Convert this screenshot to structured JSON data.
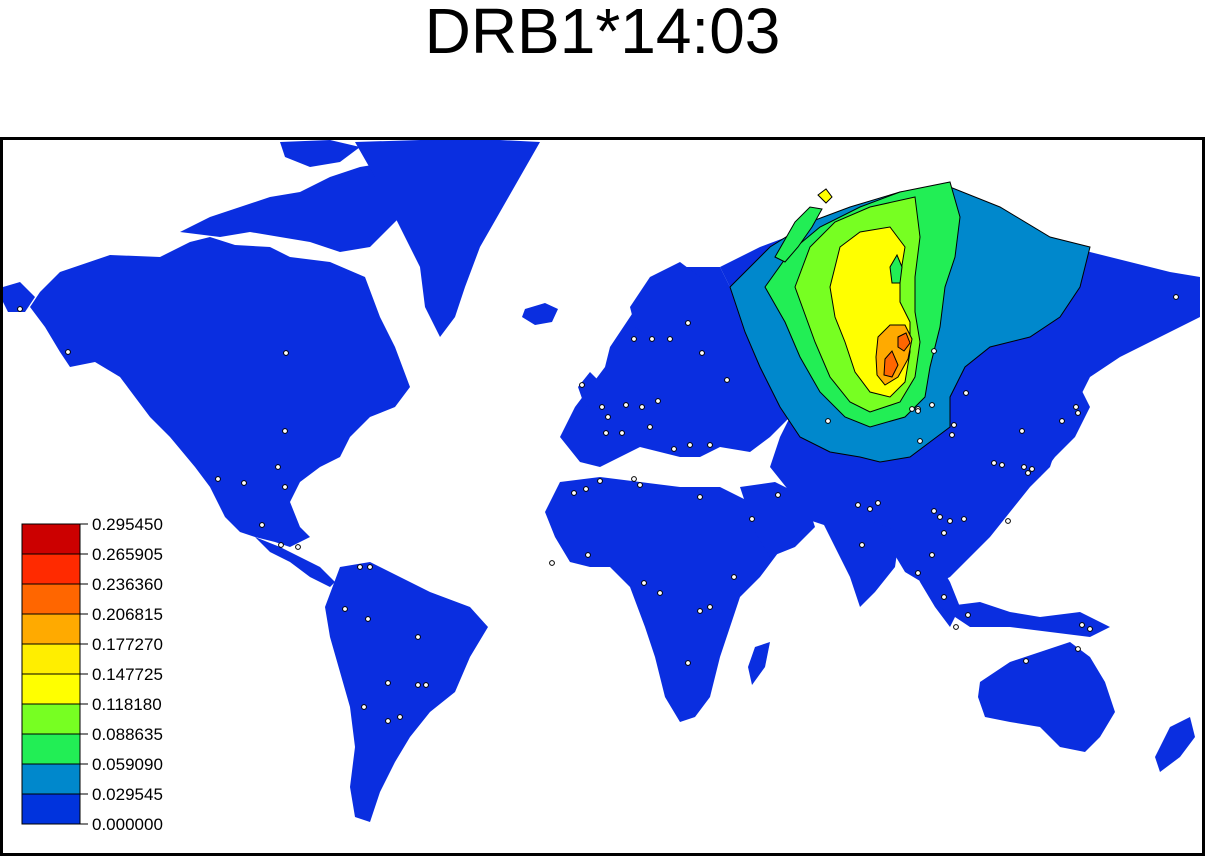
{
  "title": "DRB1*14:03",
  "legend": {
    "levels": [
      "0.295450",
      "0.265905",
      "0.236360",
      "0.206815",
      "0.177270",
      "0.147725",
      "0.118180",
      "0.088635",
      "0.059090",
      "0.029545",
      "0.000000"
    ],
    "colors": [
      "#cc0000",
      "#ff2a00",
      "#ff6600",
      "#ffaa00",
      "#ffee00",
      "#ffff00",
      "#77ff22",
      "#22ee55",
      "#0088cc",
      "#0033dd"
    ]
  },
  "colors": {
    "land": "#0a2ee0",
    "ocean": "#ffffff",
    "band_1": "#0088cc",
    "band_2": "#22ee55",
    "band_3": "#77ff22",
    "band_4": "#ffff00",
    "band_5": "#ffaa00",
    "band_6": "#ff6600",
    "sample_point": "#ffffff"
  }
}
